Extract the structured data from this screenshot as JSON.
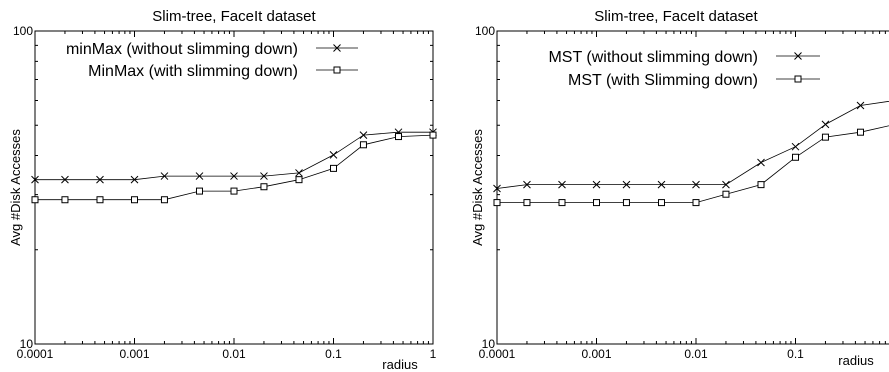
{
  "chart_data": [
    {
      "type": "line",
      "title": "Slim-tree, FaceIt dataset",
      "xlabel": "radius",
      "ylabel": "Avg #Disk Accesses",
      "xscale": "log",
      "yscale": "log",
      "xlim": [
        0.0001,
        1
      ],
      "ylim": [
        10,
        100
      ],
      "xticks": [
        "0.0001",
        "0.001",
        "0.01",
        "0.1",
        "1"
      ],
      "yticks": [
        "10",
        "100"
      ],
      "grid": false,
      "legend_position": "top-right",
      "series": [
        {
          "name": "minMax (without slimming down)",
          "marker": "x",
          "x": [
            0.0001,
            0.0002,
            0.00045,
            0.001,
            0.002,
            0.0045,
            0.01,
            0.02,
            0.045,
            0.1,
            0.2,
            0.45,
            1
          ],
          "y": [
            33.5,
            33.5,
            33.5,
            33.5,
            34.4,
            34.4,
            34.4,
            34.4,
            35.2,
            40.2,
            46.5,
            47.5,
            47.5
          ]
        },
        {
          "name": "MinMax (with slimming down)",
          "marker": "square",
          "x": [
            0.0001,
            0.0002,
            0.00045,
            0.001,
            0.002,
            0.0045,
            0.01,
            0.02,
            0.045,
            0.1,
            0.2,
            0.45,
            1
          ],
          "y": [
            28.9,
            28.9,
            28.9,
            28.9,
            28.9,
            30.8,
            30.8,
            31.8,
            33.5,
            36.4,
            43.3,
            46.0,
            46.5
          ]
        }
      ]
    },
    {
      "type": "line",
      "title": "Slim-tree, FaceIt dataset",
      "xlabel": "radius",
      "ylabel": "Avg #Disk Accesses",
      "xscale": "log",
      "yscale": "log",
      "xlim": [
        0.0001,
        1
      ],
      "ylim": [
        10,
        100
      ],
      "xticks": [
        "0.0001",
        "0.001",
        "0.01",
        "0.1"
      ],
      "yticks": [
        "10",
        "100"
      ],
      "grid": false,
      "legend_position": "top-right",
      "series": [
        {
          "name": "MST (without slimming down)",
          "marker": "x",
          "x": [
            0.0001,
            0.0002,
            0.00045,
            0.001,
            0.002,
            0.0045,
            0.01,
            0.02,
            0.045,
            0.1,
            0.2,
            0.45,
            1
          ],
          "y": [
            31.4,
            32.3,
            32.3,
            32.3,
            32.3,
            32.3,
            32.3,
            32.3,
            38.0,
            42.7,
            50.3,
            57.8,
            60.0
          ]
        },
        {
          "name": "MST (with Slimming down)",
          "marker": "square",
          "x": [
            0.0001,
            0.0002,
            0.00045,
            0.001,
            0.002,
            0.0045,
            0.01,
            0.02,
            0.045,
            0.1,
            0.2,
            0.45,
            1
          ],
          "y": [
            28.3,
            28.3,
            28.3,
            28.3,
            28.3,
            28.3,
            28.3,
            30.1,
            32.3,
            39.5,
            45.8,
            47.5,
            50.3
          ]
        }
      ]
    }
  ]
}
